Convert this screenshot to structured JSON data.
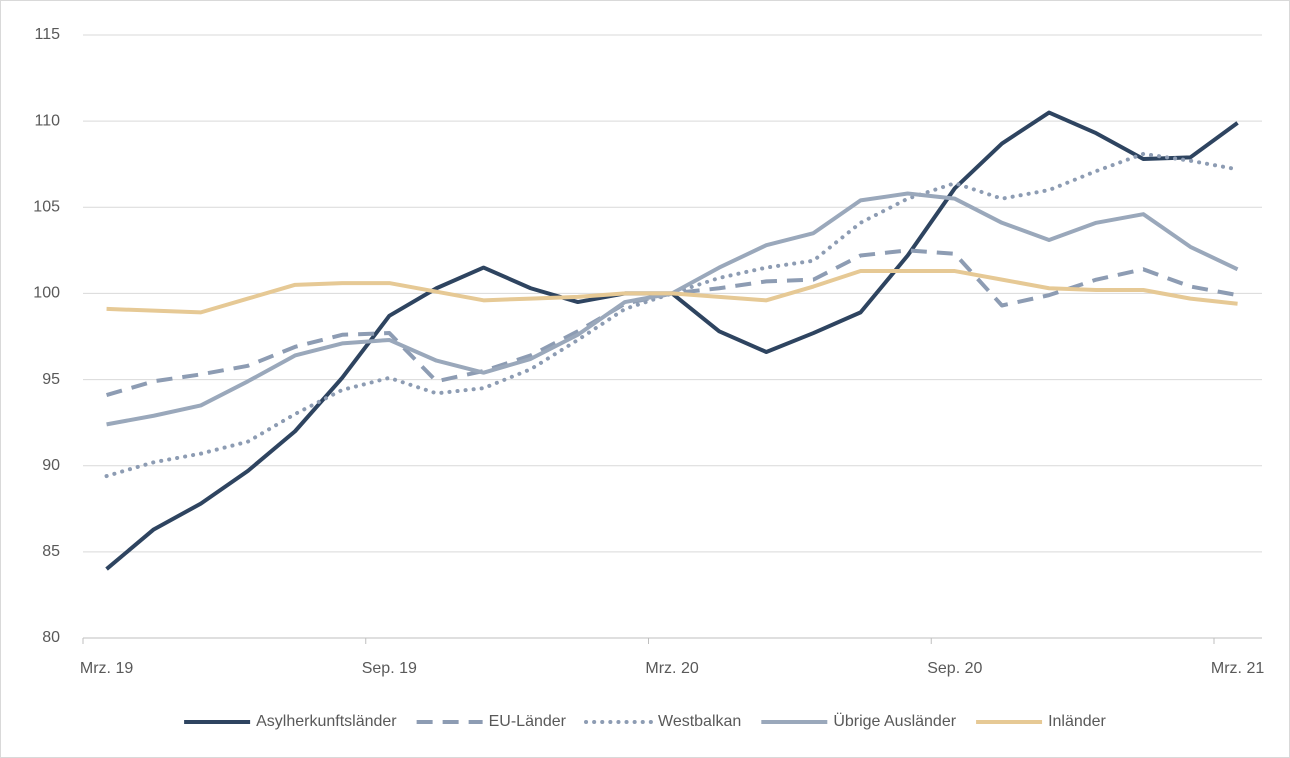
{
  "chart_data": {
    "type": "line",
    "categories": [
      "Mrz. 19",
      null,
      null,
      null,
      null,
      null,
      "Sep. 19",
      null,
      null,
      null,
      null,
      null,
      "Mrz. 20",
      null,
      null,
      null,
      null,
      null,
      "Sep. 20",
      null,
      null,
      null,
      null,
      null,
      "Mrz. 21"
    ],
    "series": [
      {
        "name": "Asylherkunftsländer",
        "color": "#2e4460",
        "dash": "solid",
        "values": [
          84.0,
          86.3,
          87.8,
          89.7,
          92.0,
          95.1,
          98.7,
          100.3,
          101.5,
          100.3,
          99.5,
          100.0,
          100.0,
          97.8,
          96.6,
          97.7,
          98.9,
          102.2,
          106.1,
          108.7,
          110.5,
          109.3,
          107.8,
          107.9,
          109.9
        ]
      },
      {
        "name": "EU-Länder",
        "color": "#8d9cb3",
        "dash": "dashed",
        "values": [
          94.1,
          94.9,
          95.3,
          95.8,
          96.9,
          97.6,
          97.7,
          94.9,
          95.5,
          96.4,
          97.8,
          99.4,
          100.0,
          100.3,
          100.7,
          100.8,
          102.2,
          102.5,
          102.3,
          99.3,
          99.9,
          100.8,
          101.4,
          100.4,
          99.9
        ]
      },
      {
        "name": "Westbalkan",
        "color": "#8d9cb3",
        "dash": "dotted",
        "values": [
          89.4,
          90.2,
          90.7,
          91.4,
          93.0,
          94.4,
          95.1,
          94.2,
          94.5,
          95.6,
          97.3,
          99.1,
          100.0,
          100.9,
          101.5,
          101.9,
          104.1,
          105.5,
          106.4,
          105.5,
          106.0,
          107.1,
          108.1,
          107.7,
          107.2
        ]
      },
      {
        "name": "Übrige Ausländer",
        "color": "#9aa8bb",
        "dash": "solid",
        "values": [
          92.4,
          92.9,
          93.5,
          94.9,
          96.4,
          97.1,
          97.3,
          96.1,
          95.4,
          96.2,
          97.6,
          99.5,
          100.0,
          101.5,
          102.8,
          103.5,
          105.4,
          105.8,
          105.5,
          104.1,
          103.1,
          104.1,
          104.6,
          102.7,
          101.4
        ]
      },
      {
        "name": "Inländer",
        "color": "#e6c995",
        "dash": "solid",
        "values": [
          99.1,
          99.0,
          98.9,
          99.7,
          100.5,
          100.6,
          100.6,
          100.1,
          99.6,
          99.7,
          99.8,
          100.0,
          100.0,
          99.8,
          99.6,
          100.4,
          101.3,
          101.3,
          101.3,
          100.8,
          100.3,
          100.2,
          100.2,
          99.7,
          99.4
        ]
      }
    ],
    "ylim": [
      80,
      115
    ],
    "yticks": [
      80,
      85,
      90,
      95,
      100,
      105,
      110,
      115
    ],
    "grid": true,
    "legend": "bottom"
  }
}
